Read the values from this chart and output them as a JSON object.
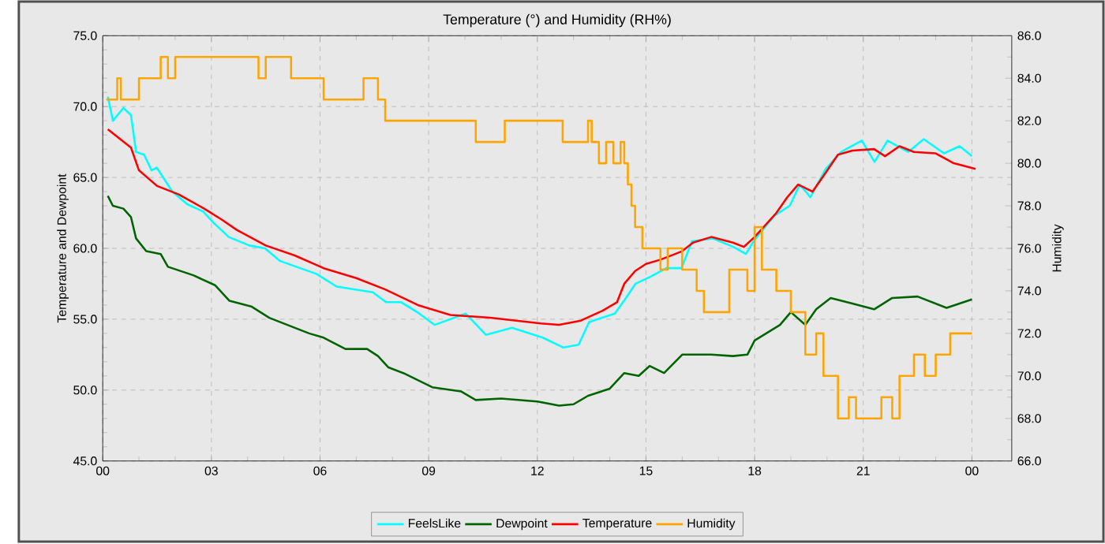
{
  "chart_data": {
    "type": "line",
    "title": "Temperature (°) and Humidity (RH%)",
    "ylabel": "Temperature and Dewpoint",
    "y2label": "Humidity",
    "xlim": [
      0,
      25.1
    ],
    "xticks": [
      {
        "value": 0,
        "label": "00"
      },
      {
        "value": 3,
        "label": "03"
      },
      {
        "value": 6,
        "label": "06"
      },
      {
        "value": 9,
        "label": "09"
      },
      {
        "value": 12,
        "label": "12"
      },
      {
        "value": 15,
        "label": "15"
      },
      {
        "value": 18,
        "label": "18"
      },
      {
        "value": 21,
        "label": "21"
      },
      {
        "value": 24,
        "label": "00"
      }
    ],
    "ylim": [
      45,
      75
    ],
    "yticks": [
      {
        "value": 45,
        "label": "45.0"
      },
      {
        "value": 50,
        "label": "50.0"
      },
      {
        "value": 55,
        "label": "55.0"
      },
      {
        "value": 60,
        "label": "60.0"
      },
      {
        "value": 65,
        "label": "65.0"
      },
      {
        "value": 70,
        "label": "70.0"
      },
      {
        "value": 75,
        "label": "75.0"
      }
    ],
    "y2lim": [
      66,
      86
    ],
    "y2ticks": [
      {
        "value": 66,
        "label": "66.0"
      },
      {
        "value": 68,
        "label": "68.0"
      },
      {
        "value": 70,
        "label": "70.0"
      },
      {
        "value": 72,
        "label": "72.0"
      },
      {
        "value": 74,
        "label": "74.0"
      },
      {
        "value": 76,
        "label": "76.0"
      },
      {
        "value": 78,
        "label": "78.0"
      },
      {
        "value": 80,
        "label": "80.0"
      },
      {
        "value": 82,
        "label": "82.0"
      },
      {
        "value": 84,
        "label": "84.0"
      },
      {
        "value": 86,
        "label": "86.0"
      }
    ],
    "grid": true,
    "legend": "bottom",
    "marker": "none",
    "line_style": "solid",
    "series": [
      {
        "name": "FeelsLike",
        "color": "#00ffff",
        "x": [
          0.14,
          0.28,
          0.57,
          0.78,
          0.92,
          1.14,
          1.35,
          1.49,
          1.92,
          2.34,
          2.77,
          3.06,
          3.48,
          4.05,
          4.48,
          4.9,
          5.9,
          6.46,
          7.46,
          7.82,
          8.24,
          8.74,
          9.16,
          10.02,
          10.58,
          11.3,
          12.15,
          12.72,
          13.14,
          13.43,
          14.14,
          14.42,
          14.71,
          15.13,
          15.56,
          15.98,
          16.27,
          16.84,
          17.41,
          17.76,
          17.97,
          18.54,
          18.97,
          19.25,
          19.54,
          19.96,
          20.39,
          20.96,
          21.31,
          21.67,
          22.24,
          22.67,
          23.23,
          23.66,
          24.0
        ],
        "values": [
          70.7,
          69.0,
          69.9,
          69.4,
          66.8,
          66.6,
          65.5,
          65.7,
          64.0,
          63.1,
          62.6,
          61.8,
          60.8,
          60.2,
          60.0,
          59.1,
          58.2,
          57.3,
          56.9,
          56.2,
          56.2,
          55.4,
          54.6,
          55.4,
          53.9,
          54.4,
          53.7,
          53.0,
          53.2,
          54.8,
          55.4,
          56.4,
          57.5,
          58.0,
          58.6,
          58.6,
          60.5,
          60.7,
          60.1,
          59.6,
          60.5,
          62.3,
          63.0,
          64.5,
          63.6,
          65.6,
          66.8,
          67.6,
          66.1,
          67.6,
          66.8,
          67.7,
          66.7,
          67.2,
          66.5
        ]
      },
      {
        "name": "Dewpoint",
        "color": "#006400",
        "x": [
          0.14,
          0.28,
          0.57,
          0.78,
          0.92,
          1.2,
          1.6,
          1.8,
          2.5,
          3.1,
          3.5,
          4.1,
          4.6,
          5.1,
          5.7,
          6.1,
          6.7,
          7.3,
          7.6,
          7.89,
          8.3,
          9.1,
          9.9,
          10.3,
          11.0,
          12.0,
          12.6,
          13.0,
          13.4,
          14.0,
          14.4,
          14.8,
          15.1,
          15.5,
          16.0,
          16.3,
          16.8,
          17.4,
          17.8,
          18.0,
          18.7,
          19.0,
          19.4,
          19.7,
          20.1,
          20.7,
          21.3,
          21.8,
          22.5,
          23.3,
          24.0
        ],
        "values": [
          63.7,
          63.0,
          62.8,
          62.2,
          60.7,
          59.8,
          59.6,
          58.7,
          58.1,
          57.4,
          56.3,
          55.9,
          55.1,
          54.6,
          54.0,
          53.7,
          52.9,
          52.9,
          52.4,
          51.6,
          51.2,
          50.2,
          49.9,
          49.3,
          49.4,
          49.2,
          48.9,
          49.0,
          49.6,
          50.1,
          51.2,
          51.0,
          51.7,
          51.2,
          52.5,
          52.5,
          52.5,
          52.4,
          52.5,
          53.5,
          54.6,
          55.5,
          54.6,
          55.7,
          56.5,
          56.1,
          55.7,
          56.5,
          56.6,
          55.8,
          56.4
        ]
      },
      {
        "name": "Temperature",
        "color": "#ff0000",
        "x": [
          0.14,
          0.78,
          1.0,
          1.5,
          2.1,
          2.8,
          3.3,
          3.7,
          4.5,
          5.3,
          6.1,
          7.0,
          7.8,
          8.7,
          9.6,
          10.7,
          12.1,
          12.6,
          13.2,
          13.8,
          14.2,
          14.4,
          14.7,
          15.0,
          15.4,
          16.0,
          16.3,
          16.8,
          17.4,
          17.7,
          18.0,
          18.6,
          18.9,
          19.2,
          19.6,
          19.9,
          20.3,
          20.7,
          21.3,
          21.6,
          22.0,
          22.4,
          23.0,
          23.5,
          24.1
        ],
        "values": [
          68.4,
          67.1,
          65.5,
          64.4,
          63.8,
          62.8,
          62.0,
          61.3,
          60.2,
          59.5,
          58.6,
          57.9,
          57.1,
          56.0,
          55.3,
          55.1,
          54.7,
          54.6,
          54.9,
          55.6,
          56.2,
          57.5,
          58.4,
          58.9,
          59.2,
          59.8,
          60.4,
          60.8,
          60.4,
          60.1,
          60.8,
          62.5,
          63.6,
          64.5,
          64.0,
          65.1,
          66.6,
          66.9,
          67.0,
          66.5,
          67.2,
          66.8,
          66.7,
          66.0,
          65.6
        ]
      },
      {
        "name": "Humidity",
        "color": "#ffa500",
        "type": "step",
        "axis": "y2",
        "x": [
          0.1,
          0.4,
          0.5,
          1.0,
          1.6,
          1.8,
          2.0,
          4.3,
          4.5,
          5.2,
          6.1,
          7.2,
          7.6,
          7.8,
          10.3,
          11.1,
          12.7,
          13.4,
          13.5,
          13.7,
          13.9,
          14.1,
          14.3,
          14.4,
          14.5,
          14.6,
          14.7,
          14.9,
          15.4,
          15.6,
          16.0,
          16.4,
          16.6,
          17.3,
          17.8,
          18.0,
          18.2,
          18.6,
          19.0,
          19.4,
          19.7,
          19.9,
          20.3,
          20.6,
          20.8,
          21.5,
          21.8,
          22.0,
          22.4,
          22.7,
          23.0,
          23.4,
          24.0
        ],
        "values": [
          83,
          84,
          83,
          84,
          85,
          84,
          85,
          84,
          85,
          84,
          83,
          84,
          83,
          82,
          81,
          82,
          81,
          82,
          81,
          80,
          81,
          80,
          81,
          80,
          79,
          78,
          77,
          76,
          75,
          76,
          75,
          74,
          73,
          75,
          74,
          77,
          75,
          74,
          73,
          71,
          72,
          70,
          68,
          69,
          68,
          69,
          68,
          70,
          71,
          70,
          71,
          72,
          72
        ]
      }
    ]
  }
}
